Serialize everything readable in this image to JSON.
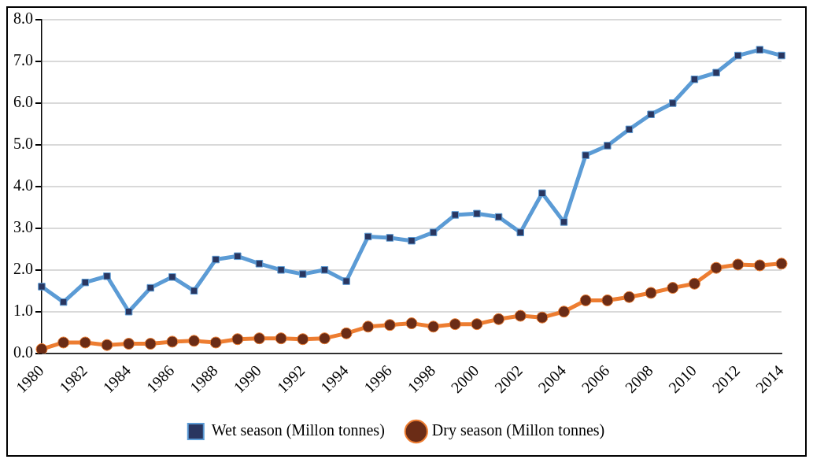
{
  "chart_data": {
    "type": "line",
    "categories": [
      "1980",
      null,
      "1982",
      null,
      "1984",
      null,
      "1986",
      null,
      "1988",
      null,
      "1990",
      null,
      "1992",
      null,
      "1994",
      null,
      "1996",
      null,
      "1998",
      null,
      "2000",
      null,
      "2002",
      null,
      "2004",
      null,
      "2006",
      null,
      "2008",
      null,
      "2010",
      null,
      "2012",
      null,
      "2014"
    ],
    "series": [
      {
        "name": "Wet season (Millon tonnes)",
        "color": "#5b9bd5",
        "marker": "square",
        "values": [
          1.6,
          1.23,
          1.7,
          1.85,
          1.0,
          1.57,
          1.83,
          1.5,
          2.25,
          2.33,
          2.15,
          2.0,
          1.9,
          2.0,
          1.73,
          2.8,
          2.77,
          2.7,
          2.9,
          3.32,
          3.35,
          3.27,
          2.9,
          3.84,
          3.15,
          4.75,
          4.98,
          5.37,
          5.73,
          6.0,
          6.57,
          6.73,
          7.14,
          7.28,
          7.14
        ]
      },
      {
        "name": "Dry season (Millon tonnes)",
        "color": "#ed7d31",
        "marker": "circle",
        "values": [
          0.1,
          0.26,
          0.26,
          0.2,
          0.23,
          0.23,
          0.28,
          0.3,
          0.26,
          0.34,
          0.36,
          0.36,
          0.34,
          0.36,
          0.48,
          0.64,
          0.68,
          0.72,
          0.64,
          0.7,
          0.7,
          0.82,
          0.9,
          0.86,
          1.0,
          1.27,
          1.27,
          1.35,
          1.45,
          1.57,
          1.67,
          2.05,
          2.13,
          2.11,
          2.15
        ]
      }
    ],
    "ylim": [
      0,
      8
    ],
    "yticks": [
      {
        "value": 0,
        "label": "0.0"
      },
      {
        "value": 1,
        "label": "1.0"
      },
      {
        "value": 2,
        "label": "2.0"
      },
      {
        "value": 3,
        "label": "3.0"
      },
      {
        "value": 4,
        "label": "4.0"
      },
      {
        "value": 5,
        "label": "5.0"
      },
      {
        "value": 6,
        "label": "6.0"
      },
      {
        "value": 7,
        "label": "7.0"
      },
      {
        "value": 8,
        "label": "8.0"
      }
    ],
    "grid": "y",
    "legend": "bottom",
    "line_style": "solid"
  }
}
